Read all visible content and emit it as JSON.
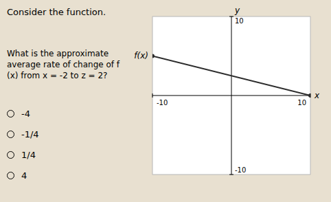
{
  "chart_data": {
    "type": "line",
    "title": "Consider the function.",
    "question": "What is the approximate average rate of change of f (x) from x = -2 to z = 2?",
    "choices": [
      "-4",
      "-1/4",
      "1/4",
      "4"
    ],
    "x": [
      -10,
      10
    ],
    "values": [
      5,
      0
    ],
    "color": "#2c2c2c",
    "marker": "circle",
    "x_label": "x",
    "y_label": "y",
    "annotations": [
      {
        "text": "f(x)",
        "x": -10,
        "y": 5
      }
    ],
    "xlim": [
      -10,
      10
    ],
    "ylim": [
      -10,
      10
    ],
    "xticks": [
      -10,
      10
    ],
    "yticks": [
      10,
      -10
    ],
    "grid": true
  }
}
